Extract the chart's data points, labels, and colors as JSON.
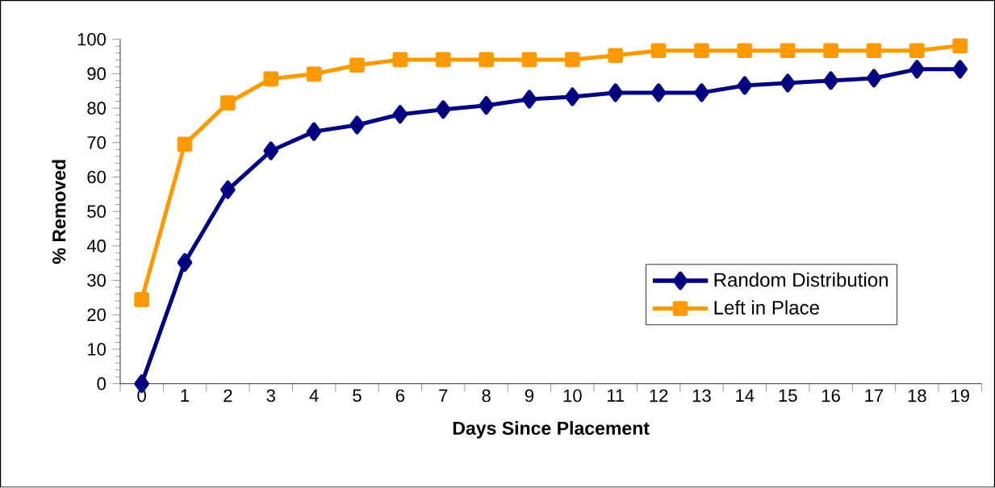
{
  "chart_data": {
    "type": "line",
    "xlabel": "Days Since Placement",
    "ylabel": "% Removed",
    "categories": [
      "0",
      "1",
      "2",
      "3",
      "4",
      "5",
      "6",
      "7",
      "8",
      "9",
      "10",
      "11",
      "12",
      "13",
      "14",
      "15",
      "16",
      "17",
      "18",
      "19"
    ],
    "series": [
      {
        "name": "Random Distribution",
        "color": "#000080",
        "marker": "diamond",
        "values": [
          0,
          35.2,
          56.3,
          67.6,
          73.2,
          75.1,
          78.2,
          79.6,
          80.8,
          82.6,
          83.3,
          84.5,
          84.5,
          84.5,
          86.6,
          87.3,
          88.0,
          88.7,
          91.3,
          91.3
        ]
      },
      {
        "name": "Left in Place",
        "color": "#ff9900",
        "marker": "square",
        "values": [
          24.4,
          69.5,
          81.5,
          88.5,
          89.9,
          92.5,
          94.1,
          94.1,
          94.1,
          94.1,
          94.1,
          95.3,
          96.7,
          96.7,
          96.7,
          96.7,
          96.7,
          96.7,
          96.7,
          98.1
        ]
      }
    ],
    "ylim": [
      0,
      100
    ],
    "yticks": [
      0,
      10,
      20,
      30,
      40,
      50,
      60,
      70,
      80,
      90,
      100
    ],
    "legend": "right",
    "grid": false,
    "line_style": "solid"
  }
}
